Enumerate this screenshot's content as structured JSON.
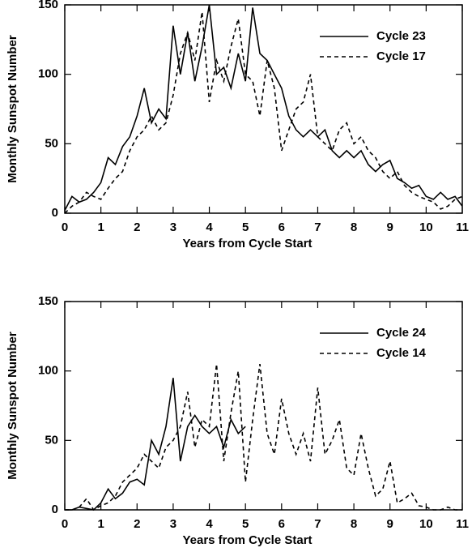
{
  "chart_data": [
    {
      "type": "line",
      "xlabel": "Years from Cycle Start",
      "ylabel": "Monthly Sunspot Number",
      "xlim": [
        0,
        11
      ],
      "ylim": [
        0,
        150
      ],
      "xticks": [
        0,
        1,
        2,
        3,
        4,
        5,
        6,
        7,
        8,
        9,
        10,
        11
      ],
      "yticks": [
        0,
        50,
        100,
        150
      ],
      "legend": "upper right",
      "series": [
        {
          "name": "Cycle 23",
          "color": "#000000",
          "line_style": "solid",
          "x": [
            0,
            0.2,
            0.4,
            0.6,
            0.8,
            1,
            1.2,
            1.4,
            1.6,
            1.8,
            2,
            2.2,
            2.4,
            2.6,
            2.8,
            3,
            3.2,
            3.4,
            3.6,
            3.8,
            4,
            4.2,
            4.4,
            4.6,
            4.8,
            5,
            5.2,
            5.4,
            5.6,
            5.8,
            6,
            6.2,
            6.4,
            6.6,
            6.8,
            7,
            7.2,
            7.4,
            7.6,
            7.8,
            8,
            8.2,
            8.4,
            8.6,
            8.8,
            9,
            9.2,
            9.4,
            9.6,
            9.8,
            10,
            10.2,
            10.4,
            10.6,
            10.8,
            11
          ],
          "values": [
            2,
            12,
            8,
            10,
            15,
            22,
            40,
            35,
            48,
            55,
            70,
            90,
            65,
            75,
            68,
            135,
            100,
            130,
            95,
            120,
            150,
            100,
            105,
            90,
            115,
            95,
            148,
            115,
            110,
            100,
            90,
            70,
            60,
            55,
            60,
            55,
            60,
            45,
            40,
            45,
            40,
            45,
            35,
            30,
            35,
            38,
            25,
            22,
            18,
            20,
            12,
            10,
            15,
            10,
            12,
            5
          ]
        },
        {
          "name": "Cycle 17",
          "color": "#000000",
          "line_style": "dashed",
          "x": [
            0,
            0.2,
            0.4,
            0.6,
            0.8,
            1,
            1.2,
            1.4,
            1.6,
            1.8,
            2,
            2.2,
            2.4,
            2.6,
            2.8,
            3,
            3.2,
            3.4,
            3.6,
            3.8,
            4,
            4.2,
            4.4,
            4.6,
            4.8,
            5,
            5.2,
            5.4,
            5.6,
            5.8,
            6,
            6.2,
            6.4,
            6.6,
            6.8,
            7,
            7.2,
            7.4,
            7.6,
            7.8,
            8,
            8.2,
            8.4,
            8.6,
            8.8,
            9,
            9.2,
            9.4,
            9.6,
            9.8,
            10,
            10.2,
            10.4,
            10.6,
            10.8,
            11
          ],
          "values": [
            0,
            5,
            8,
            15,
            12,
            10,
            18,
            25,
            30,
            45,
            55,
            60,
            70,
            60,
            65,
            85,
            115,
            130,
            110,
            145,
            80,
            110,
            95,
            120,
            140,
            100,
            95,
            70,
            110,
            90,
            45,
            60,
            75,
            80,
            100,
            55,
            50,
            45,
            60,
            65,
            50,
            55,
            45,
            40,
            30,
            25,
            30,
            20,
            15,
            12,
            10,
            8,
            3,
            5,
            10,
            12
          ]
        }
      ]
    },
    {
      "type": "line",
      "xlabel": "Years from Cycle Start",
      "ylabel": "Monthly Sunspot Number",
      "xlim": [
        0,
        11
      ],
      "ylim": [
        0,
        150
      ],
      "xticks": [
        0,
        1,
        2,
        3,
        4,
        5,
        6,
        7,
        8,
        9,
        10,
        11
      ],
      "yticks": [
        0,
        50,
        100,
        150
      ],
      "legend": "upper right",
      "series": [
        {
          "name": "Cycle 24",
          "color": "#000000",
          "line_style": "solid",
          "x": [
            0,
            0.2,
            0.4,
            0.6,
            0.8,
            1,
            1.2,
            1.4,
            1.6,
            1.8,
            2,
            2.2,
            2.4,
            2.6,
            2.8,
            3,
            3.2,
            3.4,
            3.6,
            3.8,
            4,
            4.2,
            4.4,
            4.6,
            4.8,
            5
          ],
          "values": [
            0,
            0,
            2,
            1,
            0,
            5,
            15,
            8,
            12,
            20,
            22,
            18,
            50,
            40,
            60,
            95,
            35,
            60,
            68,
            60,
            55,
            60,
            45,
            65,
            55,
            60
          ]
        },
        {
          "name": "Cycle 14",
          "color": "#000000",
          "line_style": "dashed",
          "x": [
            0,
            0.2,
            0.4,
            0.6,
            0.8,
            1,
            1.2,
            1.4,
            1.6,
            1.8,
            2,
            2.2,
            2.4,
            2.6,
            2.8,
            3,
            3.2,
            3.4,
            3.6,
            3.8,
            4,
            4.2,
            4.4,
            4.6,
            4.8,
            5,
            5.2,
            5.4,
            5.6,
            5.8,
            6,
            6.2,
            6.4,
            6.6,
            6.8,
            7,
            7.2,
            7.4,
            7.6,
            7.8,
            8,
            8.2,
            8.4,
            8.6,
            8.8,
            9,
            9.2,
            9.4,
            9.6,
            9.8,
            10,
            10.2,
            10.4,
            10.6,
            10.8,
            11
          ],
          "values": [
            0,
            0,
            2,
            8,
            0,
            3,
            5,
            10,
            20,
            25,
            30,
            40,
            35,
            30,
            45,
            50,
            60,
            85,
            45,
            65,
            60,
            105,
            35,
            70,
            100,
            20,
            65,
            105,
            55,
            40,
            80,
            55,
            40,
            55,
            35,
            88,
            40,
            50,
            65,
            30,
            25,
            55,
            30,
            10,
            15,
            35,
            5,
            8,
            12,
            3,
            2,
            0,
            0,
            2,
            0,
            0
          ]
        }
      ]
    }
  ]
}
